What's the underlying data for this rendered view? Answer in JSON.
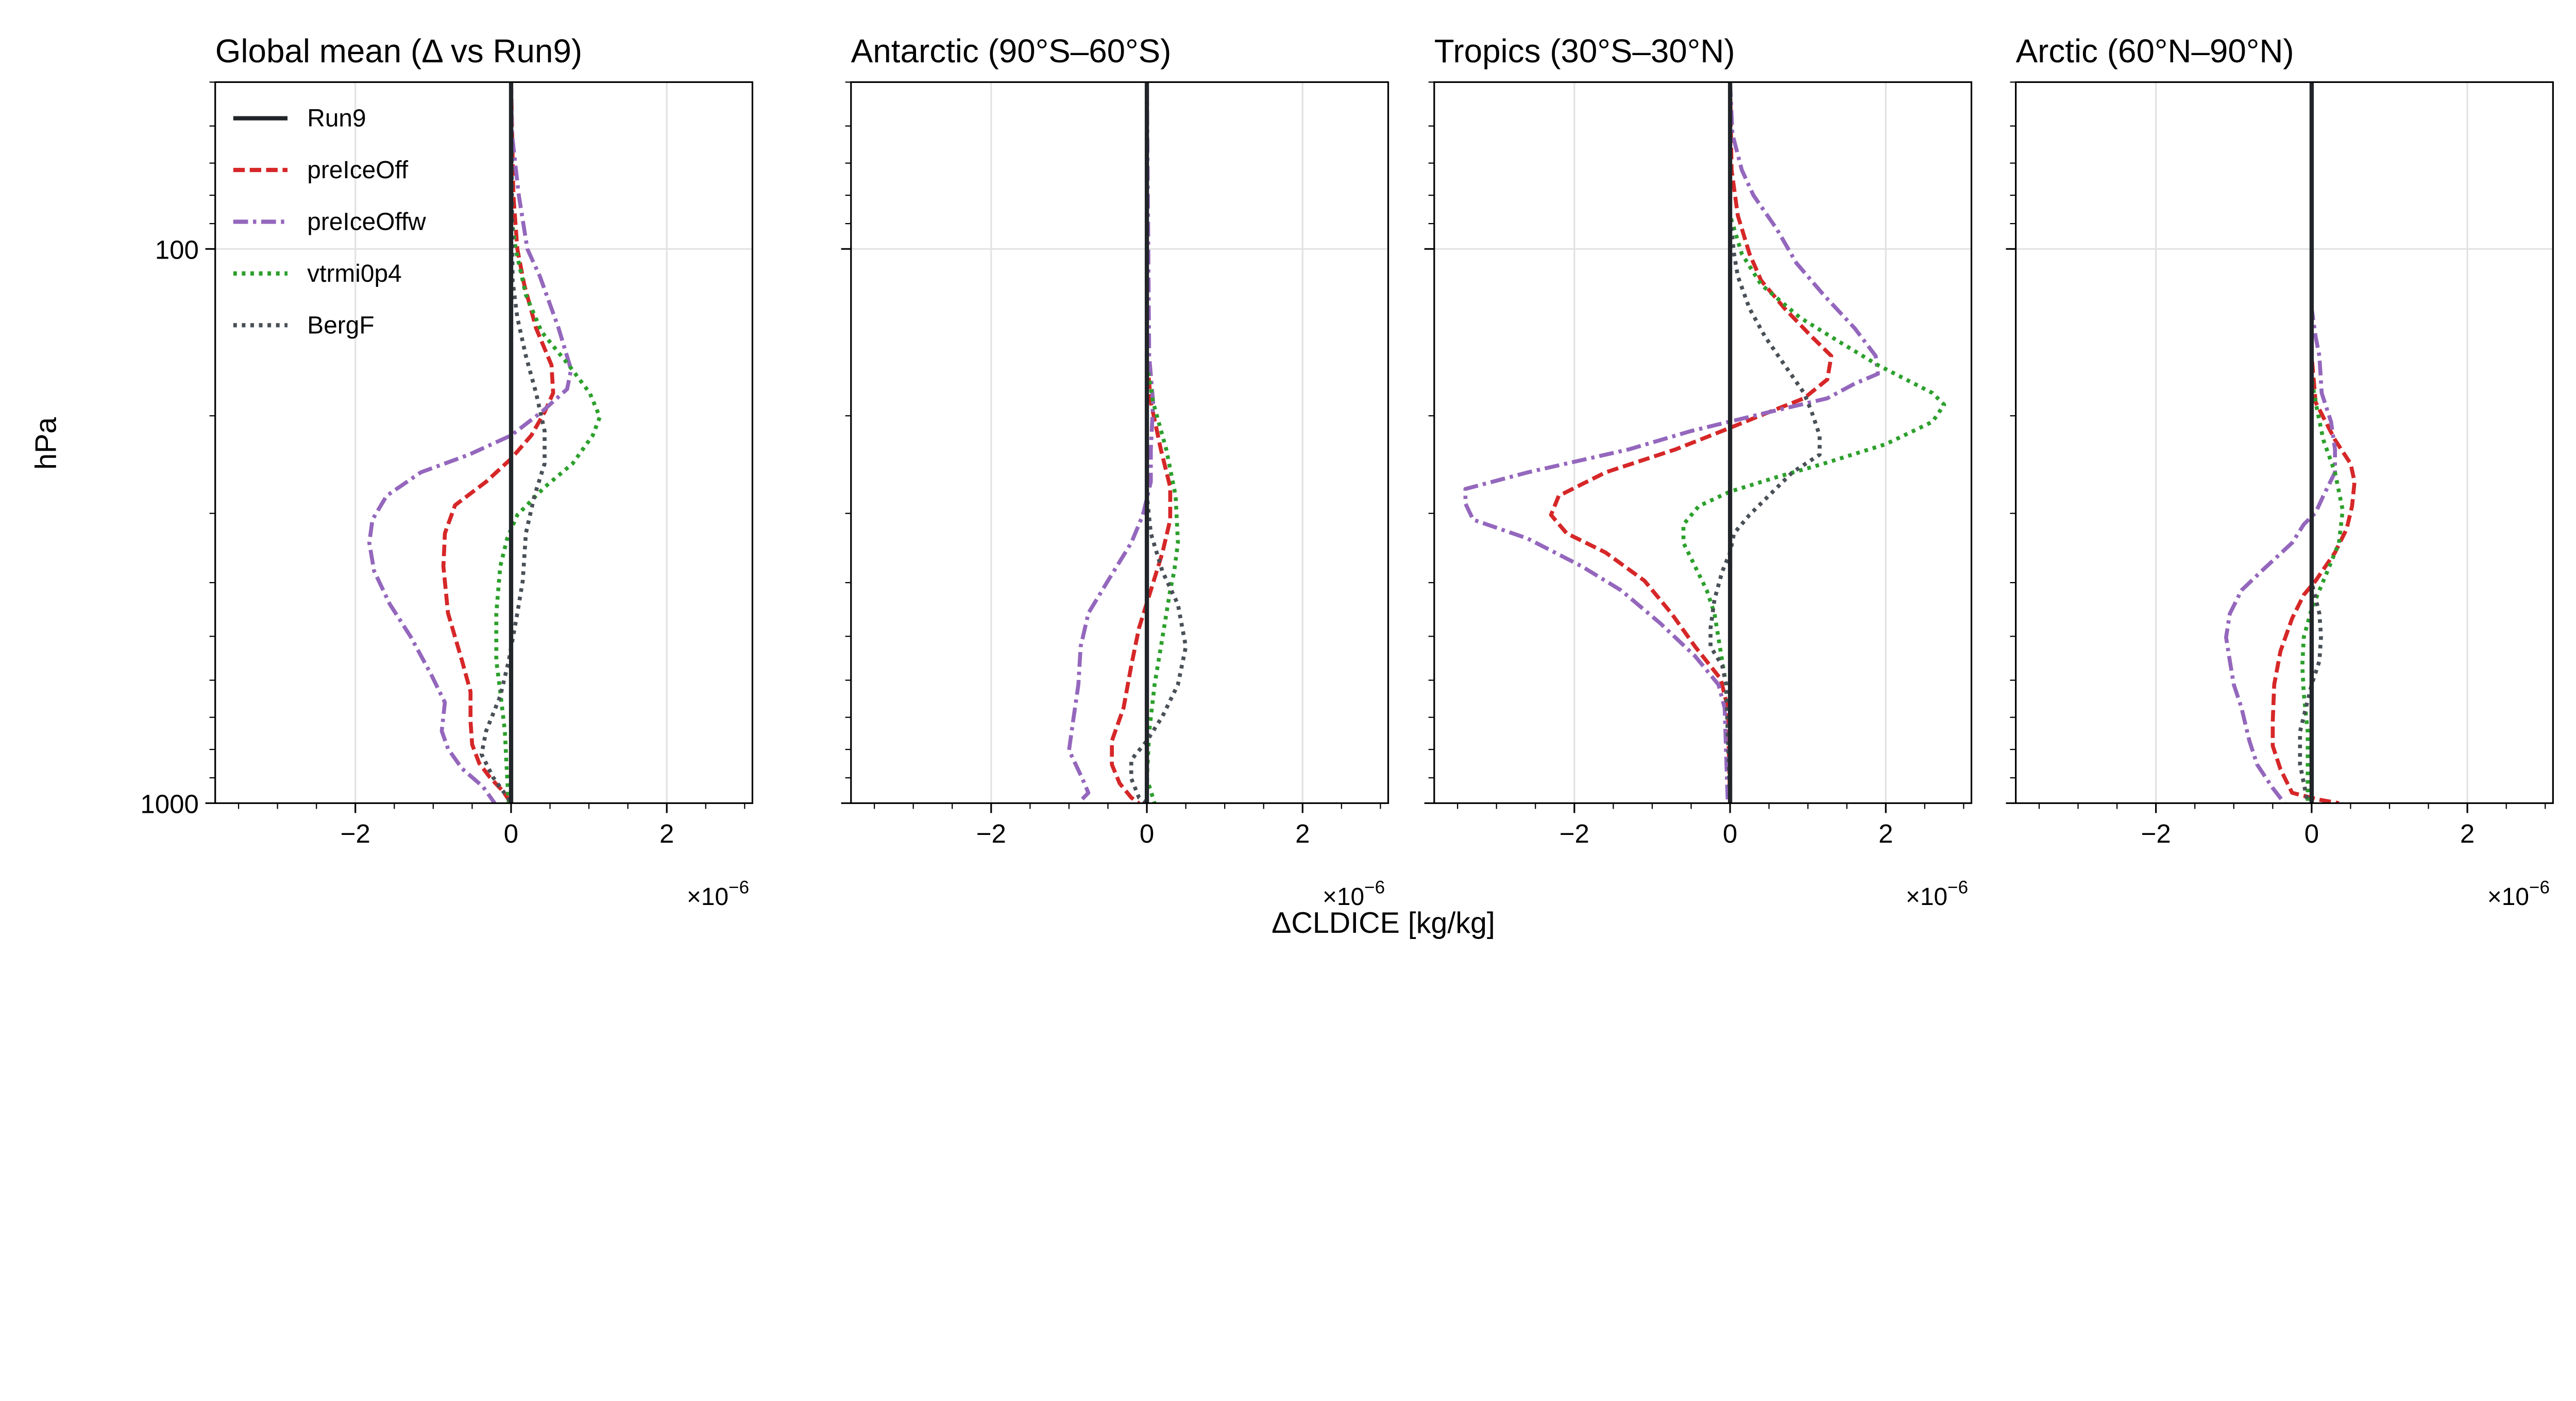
{
  "chart_data": {
    "type": "line",
    "xlabel": "ΔCLDICE [kg/kg]",
    "ylabel": "hPa",
    "x_multiplier_label": "×10",
    "x_multiplier_exponent": "−6",
    "xlim": [
      -3.8,
      3.1
    ],
    "ylim": [
      1000,
      50
    ],
    "yscale": "log",
    "xticks": [
      -2,
      0,
      2
    ],
    "xtick_labels": [
      "−2",
      "0",
      "2"
    ],
    "yticks": [
      100,
      1000
    ],
    "ytick_labels": [
      "100",
      "1000"
    ],
    "grid": true,
    "legend_placement": "upper-left of first panel",
    "legend": [
      {
        "name": "Run9",
        "color": "#212529",
        "style": "solid"
      },
      {
        "name": "preIceOff",
        "color": "#d62728",
        "style": "dashed"
      },
      {
        "name": "preIceOffw",
        "color": "#9467bd",
        "style": "dashdot"
      },
      {
        "name": "vtrmi0p4",
        "color": "#2ca02c",
        "style": "dotted"
      },
      {
        "name": "BergF",
        "color": "#495057",
        "style": "dotted"
      }
    ],
    "panels": [
      {
        "title": "Global mean (Δ vs Run9)",
        "series": [
          {
            "name": "Run9",
            "p": [
              50,
              1000
            ],
            "v": [
              0,
              0
            ]
          },
          {
            "name": "preIceOff",
            "p": [
              50,
              80,
              100,
              116,
              139,
              162,
              182,
              197,
              217,
              239,
              263,
              290,
              326,
              374,
              454,
              553,
              629,
              711,
              784,
              847,
              899,
              953,
              1000
            ],
            "v": [
              0,
              0.03,
              0.08,
              0.17,
              0.32,
              0.52,
              0.54,
              0.43,
              0.26,
              0,
              -0.32,
              -0.72,
              -0.85,
              -0.87,
              -0.81,
              -0.63,
              -0.52,
              -0.52,
              -0.5,
              -0.41,
              -0.27,
              -0.1,
              0
            ]
          },
          {
            "name": "preIceOffw",
            "p": [
              50,
              62,
              80,
              100,
              112,
              139,
              165,
              179,
              197,
              217,
              235,
              253,
              279,
              308,
              339,
              381,
              437,
              501,
              585,
              658,
              741,
              798,
              866,
              934,
              1000
            ],
            "v": [
              0,
              0.01,
              0.1,
              0.21,
              0.37,
              0.61,
              0.77,
              0.72,
              0.39,
              0,
              -0.54,
              -1.16,
              -1.6,
              -1.78,
              -1.82,
              -1.76,
              -1.56,
              -1.29,
              -1.03,
              -0.85,
              -0.89,
              -0.81,
              -0.63,
              -0.36,
              -0.21
            ]
          },
          {
            "name": "vtrmi0p4",
            "p": [
              50,
              87,
              100,
              121,
              141,
              162,
              182,
              201,
              217,
              244,
              269,
              302,
              333,
              374,
              454,
              553,
              629,
              741,
              899,
              1000
            ],
            "v": [
              0,
              0,
              0.06,
              0.19,
              0.39,
              0.74,
              1.01,
              1.14,
              1.05,
              0.79,
              0.43,
              0.08,
              -0.05,
              -0.14,
              -0.19,
              -0.19,
              -0.14,
              -0.08,
              -0.05,
              -0.03
            ]
          },
          {
            "name": "BergF",
            "p": [
              50,
              114,
              133,
              156,
              182,
              213,
              244,
              279,
              326,
              397,
              454,
              553,
              641,
              741,
              816,
              899,
              974,
              1000
            ],
            "v": [
              0,
              0.02,
              0.08,
              0.19,
              0.32,
              0.43,
              0.43,
              0.3,
              0.19,
              0.15,
              0.08,
              -0.03,
              -0.14,
              -0.32,
              -0.38,
              -0.23,
              -0.05,
              0
            ]
          }
        ]
      },
      {
        "title": "Antarctic (90°S–60°S)",
        "series": [
          {
            "name": "Run9",
            "p": [
              50,
              1000
            ],
            "v": [
              0,
              0
            ]
          },
          {
            "name": "preIceOff",
            "p": [
              50,
              156,
              189,
              230,
              269,
              308,
              353,
              413,
              483,
              565,
              673,
              772,
              852,
              921,
              977,
              1000
            ],
            "v": [
              0,
              0,
              0.05,
              0.18,
              0.3,
              0.3,
              0.2,
              0.05,
              -0.1,
              -0.2,
              -0.3,
              -0.45,
              -0.45,
              -0.35,
              -0.2,
              -0.1
            ]
          },
          {
            "name": "preIceOffw",
            "p": [
              50,
              156,
              189,
              230,
              263,
              302,
              339,
              397,
              454,
              522,
              611,
              714,
              803,
              903,
              958,
              990
            ],
            "v": [
              0,
              0.03,
              0.08,
              0.05,
              0.05,
              -0.05,
              -0.2,
              -0.5,
              -0.75,
              -0.85,
              -0.88,
              -0.95,
              -1.0,
              -0.83,
              -0.75,
              -0.85
            ]
          },
          {
            "name": "vtrmi0p4",
            "p": [
              50,
              162,
              189,
              230,
              279,
              339,
              382,
              413,
              502,
              611,
              743,
              903,
              1000
            ],
            "v": [
              0,
              0,
              0.08,
              0.25,
              0.37,
              0.4,
              0.35,
              0.3,
              0.2,
              0.1,
              0.03,
              0,
              0.1
            ]
          },
          {
            "name": "BergF",
            "p": [
              50,
              279,
              326,
              382,
              438,
              522,
              611,
              697,
              772,
              835,
              903,
              977,
              1000
            ],
            "v": [
              0,
              0,
              0.05,
              0.2,
              0.4,
              0.5,
              0.4,
              0.2,
              0,
              -0.2,
              -0.2,
              -0.1,
              0
            ]
          }
        ]
      },
      {
        "title": "Tropics (30°S–30°N)",
        "series": [
          {
            "name": "Run9",
            "p": [
              50,
              1000
            ],
            "v": [
              0,
              0
            ]
          },
          {
            "name": "preIceOff",
            "p": [
              50,
              72,
              87,
              102,
              114,
              128,
              144,
              156,
              172,
              186,
              197,
              213,
              230,
              253,
              279,
              302,
              326,
              353,
              397,
              455,
              522,
              597,
              673,
              1000
            ],
            "v": [
              0,
              0.02,
              0.1,
              0.25,
              0.4,
              0.7,
              1.05,
              1.3,
              1.25,
              0.95,
              0.5,
              -0.1,
              -0.7,
              -1.6,
              -2.2,
              -2.3,
              -2.1,
              -1.6,
              -1.1,
              -0.75,
              -0.45,
              -0.12,
              -0.03,
              0
            ]
          },
          {
            "name": "preIceOffw",
            "p": [
              50,
              62,
              72,
              80,
              92,
              106,
              121,
              139,
              156,
              168,
              175,
              186,
              197,
              213,
              230,
              253,
              271,
              288,
              308,
              333,
              374,
              413,
              473,
              543,
              611,
              673,
              819,
              1000
            ],
            "v": [
              0,
              0.03,
              0.15,
              0.3,
              0.6,
              0.85,
              1.2,
              1.6,
              1.87,
              1.9,
              1.6,
              1.25,
              0.5,
              -0.5,
              -1.3,
              -2.6,
              -3.4,
              -3.4,
              -3.3,
              -2.6,
              -1.9,
              -1.4,
              -0.9,
              -0.45,
              -0.15,
              -0.07,
              -0.05,
              -0.03
            ]
          },
          {
            "name": "vtrmi0p4",
            "p": [
              50,
              87,
              102,
              116,
              133,
              147,
              162,
              182,
              191,
              205,
              225,
              244,
              258,
              274,
              291,
              314,
              339,
              374,
              413,
              455,
              554,
              611,
              1000
            ],
            "v": [
              0,
              0,
              0.15,
              0.4,
              0.9,
              1.4,
              1.9,
              2.6,
              2.75,
              2.6,
              2.0,
              1.2,
              0.6,
              0,
              -0.4,
              -0.6,
              -0.6,
              -0.45,
              -0.3,
              -0.2,
              -0.1,
              -0.05,
              0
            ]
          },
          {
            "name": "BergF",
            "p": [
              50,
              87,
              102,
              112,
              128,
              144,
              162,
              182,
              197,
              217,
              235,
              253,
              274,
              302,
              326,
              353,
              382,
              429,
              483,
              522,
              565,
              611,
              1000
            ],
            "v": [
              0,
              0,
              0.05,
              0.1,
              0.25,
              0.45,
              0.7,
              0.95,
              1.05,
              1.15,
              1.15,
              0.8,
              0.55,
              0.25,
              0.05,
              0,
              -0.1,
              -0.2,
              -0.25,
              -0.25,
              -0.1,
              -0.05,
              0
            ]
          }
        ]
      },
      {
        "title": "Arctic (60°N–90°N)",
        "series": [
          {
            "name": "Run9",
            "p": [
              50,
              1000
            ],
            "v": [
              0,
              0
            ]
          },
          {
            "name": "preIceOff",
            "p": [
              50,
              156,
              189,
              221,
              244,
              263,
              291,
              320,
              353,
              397,
              421,
              464,
              532,
              611,
              714,
              788,
              868,
              958,
              986,
              1000
            ],
            "v": [
              0,
              0,
              0.05,
              0.3,
              0.5,
              0.55,
              0.52,
              0.45,
              0.3,
              0.05,
              -0.1,
              -0.25,
              -0.4,
              -0.48,
              -0.5,
              -0.5,
              -0.4,
              -0.25,
              0.1,
              0.35
            ]
          },
          {
            "name": "preIceOffw",
            "p": [
              50,
              128,
              144,
              156,
              182,
              205,
              230,
              253,
              279,
              299,
              314,
              339,
              382,
              413,
              455,
              502,
              554,
              611,
              673,
              772,
              852,
              939,
              1000
            ],
            "v": [
              0,
              0,
              0.05,
              0.1,
              0.13,
              0.25,
              0.3,
              0.3,
              0.15,
              0.05,
              -0.1,
              -0.25,
              -0.65,
              -0.9,
              -1.05,
              -1.1,
              -1.05,
              -1.0,
              -0.9,
              -0.8,
              -0.7,
              -0.5,
              -0.35
            ]
          },
          {
            "name": "vtrmi0p4",
            "p": [
              50,
              172,
              189,
              221,
              253,
              296,
              339,
              382,
              413,
              446,
              502,
              565,
              635,
              743,
              1000
            ],
            "v": [
              0,
              0,
              0.05,
              0.15,
              0.3,
              0.4,
              0.35,
              0.2,
              0.1,
              0,
              -0.1,
              -0.12,
              -0.1,
              -0.05,
              -0.05
            ]
          },
          {
            "name": "BergF",
            "p": [
              50,
              400,
              455,
              500,
              554,
              611,
              743,
              850,
              1000
            ],
            "v": [
              0,
              0,
              0.1,
              0.12,
              0.1,
              0,
              -0.15,
              -0.15,
              -0.05
            ]
          }
        ]
      }
    ]
  }
}
